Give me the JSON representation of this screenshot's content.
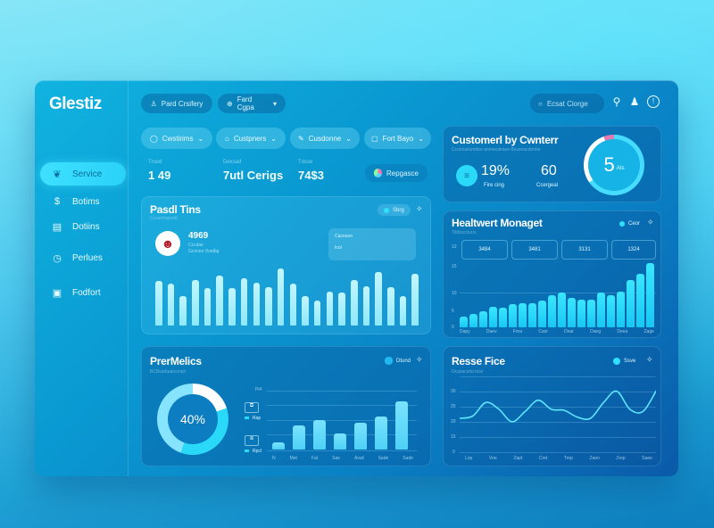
{
  "app": {
    "logo": "Glestiz"
  },
  "header": {
    "pills": [
      {
        "icon": "user-icon",
        "label": "Pard Crsifery"
      },
      {
        "icon": "globe-icon",
        "label": "Fard Cgpa",
        "has_dropdown": true
      }
    ],
    "search": {
      "placeholder": "Ecsat Ciorge"
    },
    "icons": [
      "search-icon",
      "user-icon",
      "alert-icon"
    ]
  },
  "sidebar": {
    "items": [
      {
        "icon": "leaf-icon",
        "label": "Service",
        "active": true
      },
      {
        "icon": "dollar-icon",
        "label": "Botims",
        "active": false
      },
      {
        "icon": "document-icon",
        "label": "Dotiins",
        "active": false
      },
      {
        "icon": "chart-icon",
        "label": "Perlues",
        "active": false
      },
      {
        "icon": "image-icon",
        "label": "Fodfort",
        "active": false
      }
    ]
  },
  "filters": [
    {
      "icon": "bag-icon",
      "label": "Cwstirims"
    },
    {
      "icon": "lock-icon",
      "label": "Custpners"
    },
    {
      "icon": "pen-icon",
      "label": "Cusdonne"
    },
    {
      "icon": "clipboard-icon",
      "label": "Fort Bayo"
    }
  ],
  "stats": [
    {
      "label": "Trood",
      "value": "1 49"
    },
    {
      "label": "Dexsad",
      "value": "7utl Cerigs"
    },
    {
      "label": "Tdsse",
      "value": "74$3"
    }
  ],
  "profile_button": {
    "label": "Repgasce"
  },
  "customer_card": {
    "title": "Customerl by Cwnterr",
    "subtitle": "Ccunnaiiumdoe anmecdeaee Bsuseacdonbe",
    "metric1": {
      "value": "19%",
      "label": "Fire cing"
    },
    "metric2": {
      "value": "60",
      "label": "Ccergeal"
    },
    "gauge": {
      "value": "5",
      "unit": "Ats"
    }
  },
  "panel_bars": {
    "title": "Pasdl Tins",
    "subtitle": "Ccsunmgeodl",
    "chip": "Sbrg",
    "kpi": {
      "value": "4969",
      "label1": "Cccdae",
      "label2": "Gcorsnr Ihadbg"
    },
    "info_box": {
      "label": "Cacnuoo",
      "value": "Icol"
    }
  },
  "panel_mgmt": {
    "title": "Healtwert Monaget",
    "subtitle": "Tlldsccciurrs",
    "chip": "Ceor",
    "y_top_label": "12",
    "boxes": [
      "3484",
      "3481",
      "3131",
      "1324"
    ],
    "x_labels": [
      "Dapy",
      "Daev",
      "Frea",
      "Casr",
      "Dear",
      "Daeg",
      "Deea",
      "Zage"
    ],
    "y_labels": [
      "15",
      "10",
      "5",
      "0"
    ]
  },
  "panel_metrics": {
    "title": "PrerMelics",
    "subtitle": "BCBsadaaeconpir",
    "chip": "Dtund",
    "donut": {
      "value": "40%"
    },
    "legend": [
      {
        "icon": "laptop-icon",
        "label": "Rap"
      },
      {
        "icon": "monitor-icon",
        "label": "Rpcl"
      }
    ],
    "y_top_label": "Pi4",
    "x_labels": [
      "N",
      "Met",
      "Fat",
      "Sae",
      "Arad",
      "Sade",
      "Sade"
    ]
  },
  "panel_line": {
    "title": "Resse Fice",
    "subtitle": "Dcasacsda bcie",
    "chip": "Ssve",
    "y_labels": [
      "30",
      "25",
      "20",
      "15",
      "0"
    ],
    "x_labels": [
      "Lop",
      "Vne",
      "Zapt",
      "Cret",
      "Trep",
      "Zaen",
      "Zrep",
      "Saee"
    ]
  },
  "chart_data": [
    {
      "type": "bar",
      "title": "Pasdl Tins",
      "values": [
        9,
        8.5,
        6,
        9.2,
        7.5,
        10,
        7.5,
        9.5,
        8.6,
        7.8,
        11.5,
        8.5,
        6,
        5,
        6.8,
        6.6,
        9.2,
        7.9,
        10.8,
        7.8,
        6,
        10.5
      ],
      "color": "#a7efff"
    },
    {
      "type": "bar",
      "title": "Healtwert Monaget",
      "categories": [
        "Dapy",
        "Daev",
        "Frea",
        "Casr",
        "Dear",
        "Daeg",
        "Deea",
        "Zage"
      ],
      "values": [
        2.4,
        3.1,
        3.8,
        4.7,
        4.5,
        5.5,
        5.6,
        5.7,
        6.3,
        7.6,
        8.2,
        6.8,
        6.4,
        6.4,
        8.2,
        7.6,
        8.4,
        11,
        12.5,
        15
      ],
      "ylim": [
        0,
        15
      ],
      "yticks": [
        0,
        5,
        10,
        15
      ],
      "color": "#25d8ff"
    },
    {
      "type": "bar",
      "title": "PrerMelics",
      "categories": [
        "N",
        "Met",
        "Fat",
        "Sae",
        "Arad",
        "Sade",
        "Sade"
      ],
      "values": [
        1.2,
        4.3,
        5.3,
        2.8,
        4.8,
        5.8,
        8.5
      ],
      "ylim": [
        0,
        10
      ],
      "color": "#67dcff"
    },
    {
      "type": "pie",
      "title": "PrerMelics donut",
      "values": [
        40,
        60
      ],
      "labels": [
        "complete",
        "remaining"
      ],
      "center_label": "40%"
    },
    {
      "type": "line",
      "title": "Resse Fice",
      "categories": [
        "Lop",
        "Vne",
        "Zapt",
        "Cret",
        "Trep",
        "Zaen",
        "Zrep",
        "Saee"
      ],
      "x": [
        0,
        0.5,
        1,
        1.5,
        2,
        2.5,
        3,
        3.5,
        4,
        4.5,
        5,
        5.5,
        6,
        6.5,
        7,
        7.5
      ],
      "values": [
        15,
        16,
        22,
        19,
        13.5,
        18,
        23,
        19,
        18.5,
        15.5,
        15,
        22,
        27,
        19,
        18,
        27
      ],
      "ylim": [
        0,
        30
      ],
      "yticks": [
        0,
        15,
        20,
        25,
        30
      ],
      "color": "#5fe6ff"
    },
    {
      "type": "pie",
      "title": "Customerl by Cwnterr gauge",
      "values": [
        65,
        30,
        5
      ],
      "labels": [
        "cyan",
        "white",
        "pink"
      ],
      "center_label": "5 Ats"
    }
  ]
}
